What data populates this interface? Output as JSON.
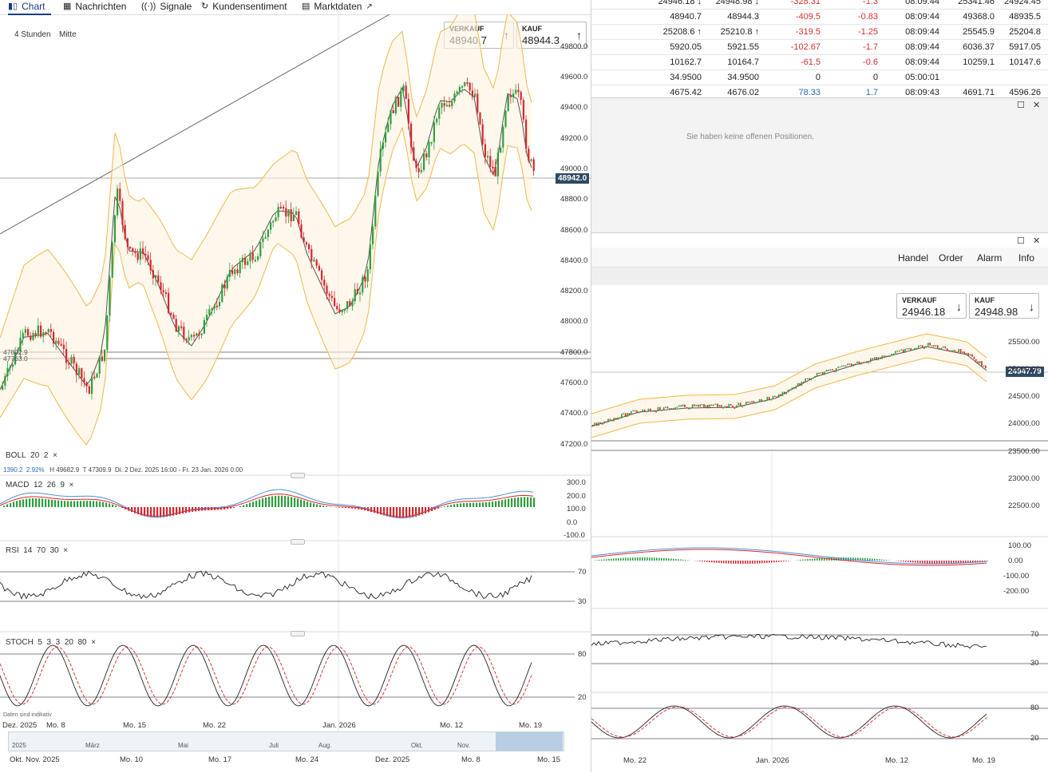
{
  "tabs": [
    {
      "label": "Chart",
      "icon": "candlestick-icon",
      "active": true
    },
    {
      "label": "Nachrichten",
      "icon": "newspaper-icon"
    },
    {
      "label": "Signale",
      "icon": "signal-icon"
    },
    {
      "label": "Kundensentiment",
      "icon": "refresh-icon"
    },
    {
      "label": "Marktdaten",
      "icon": "calendar-icon",
      "external": "↗"
    }
  ],
  "controls": {
    "interval": "4 Stunden",
    "price_mode": "Mitte"
  },
  "left_quote": {
    "sell_label": "VERKAUF",
    "sell_value": "48940.7",
    "sell_arrow": "↑",
    "buy_label": "KAUF",
    "buy_value": "48944.3",
    "buy_arrow": "↑"
  },
  "left_price_tag": "48942.0",
  "left_hlines": {
    "a": "47802.9",
    "b": "47763.0"
  },
  "left_yaxis": [
    "49600.0",
    "49400.0",
    "49200.0",
    "49000.0",
    "48800.0",
    "48600.0",
    "48400.0",
    "48200.0",
    "48000.0",
    "47800.0",
    "47600.0",
    "47400.0",
    "47200.0"
  ],
  "left_top_partial": "49800.0",
  "boll": {
    "label": "BOLL",
    "p1": "20",
    "p2": "2",
    "close": "×",
    "info_a": "1390.2",
    "info_b": "2.92%",
    "info_c": "H 49682.9",
    "info_d": "T 47309.9",
    "range": "Di. 2 Dez. 2025 16:00 - Fr. 23 Jan. 2026 0:00"
  },
  "macd": {
    "label": "MACD",
    "params": [
      "12",
      "26",
      "9"
    ],
    "close": "×",
    "axis": [
      "300.0",
      "200.0",
      "100.0",
      "0.0",
      "-100.0"
    ]
  },
  "rsi": {
    "label": "RSI",
    "params": [
      "14",
      "70",
      "30"
    ],
    "close": "×",
    "axis": [
      "70",
      "30"
    ]
  },
  "stoch": {
    "label": "STOCH",
    "params": [
      "5",
      "3",
      "3",
      "20",
      "80"
    ],
    "close": "×",
    "axis": [
      "80",
      "20"
    ]
  },
  "left_note": "Daten sind indikativ",
  "left_xaxis": [
    "Dez. 2025",
    "Mo. 8",
    "Mo. 15",
    "Mo. 22",
    "Jan. 2026",
    "Mo. 12",
    "Mo. 19"
  ],
  "navigator": [
    "2025",
    "März",
    "Mai",
    "Juli",
    "Aug.",
    "Okt.",
    "Nov."
  ],
  "bottom_xaxis": [
    "Okt. Nov. 2025",
    "Mo. 10",
    "Mo. 17",
    "Mo. 24",
    "Dez. 2025",
    "Mo. 8",
    "Mo. 15"
  ],
  "table": {
    "rows": [
      [
        "24946.18 ↓",
        "24948.98 ↓",
        "-328.31",
        "-1.3",
        "08:09:44",
        "25341.46",
        "24924.45"
      ],
      [
        "48940.7",
        "48944.3",
        "-409.5",
        "-0.83",
        "08:09:44",
        "49368.0",
        "48935.5"
      ],
      [
        "25208.6 ↑",
        "25210.8 ↑",
        "-319.5",
        "-1.25",
        "08:09:44",
        "25545.9",
        "25204.8"
      ],
      [
        "5920.05",
        "5921.55",
        "-102.67",
        "-1.7",
        "08:09:44",
        "6036.37",
        "5917.05"
      ],
      [
        "10162.7",
        "10164.7",
        "-61.5",
        "-0.6",
        "08:09:44",
        "10259.1",
        "10147.6"
      ],
      [
        "34.9500",
        "34.9500",
        "0",
        "0",
        "05:00:01",
        "",
        ""
      ],
      [
        "4675.42",
        "4676.02",
        "78.33",
        "1.7",
        "08:09:43",
        "4691.71",
        "4596.26"
      ]
    ]
  },
  "positions": {
    "empty_text": "Sie haben keine offenen Positionen.",
    "win_max": "☐",
    "win_close": "✕"
  },
  "right_menu": [
    "Handel",
    "Order",
    "Alarm",
    "Info"
  ],
  "right_quote": {
    "sell_label": "VERKAUF",
    "sell_value": "24946.18",
    "sell_arrow": "↓",
    "buy_label": "KAUF",
    "buy_value": "24948.98",
    "buy_arrow": "↓"
  },
  "right_price_tag": "24947.79",
  "right_yaxis": [
    "25500.00",
    "25000.00",
    "24500.00",
    "24000.00",
    "23500.00",
    "23000.00",
    "22500.00"
  ],
  "right_macd_axis": [
    "100.00",
    "0.00",
    "-100.00",
    "-200.00"
  ],
  "right_rsi_axis": [
    "70",
    "30"
  ],
  "right_stoch_axis": [
    "80",
    "20"
  ],
  "right_xaxis": [
    "Mo. 22",
    "Jan. 2026",
    "Mo. 12",
    "Mo. 19"
  ],
  "colors": {
    "up": "#2e9e3e",
    "down": "#d9262c",
    "band": "#f0b84a",
    "accent": "#1a3a8a",
    "tag": "#2f4a63"
  }
}
